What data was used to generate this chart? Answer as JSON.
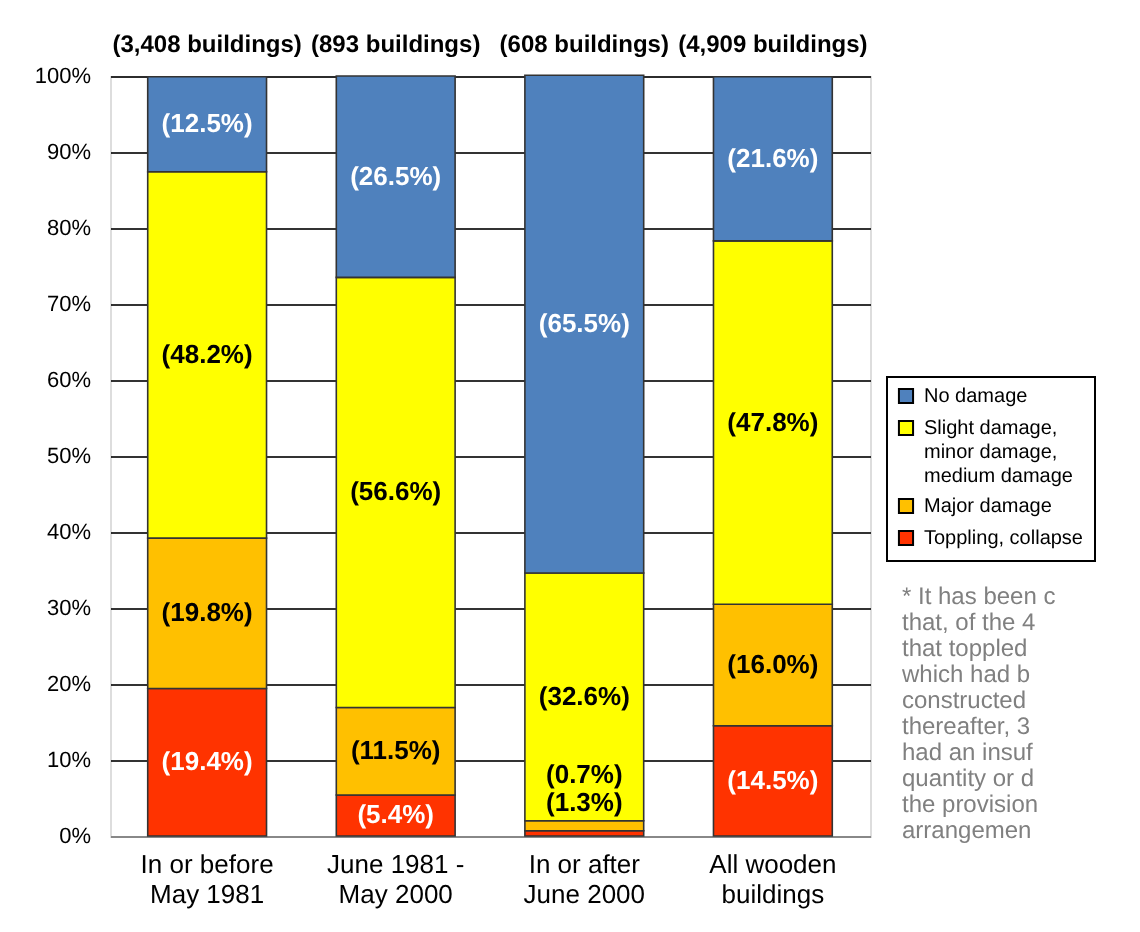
{
  "chart_data": {
    "type": "bar",
    "stacked": true,
    "categories": [
      "In or before\nMay 1981",
      "June 1981 -\nMay 2000",
      "In or after\nJune 2000",
      "All wooden\nbuildings"
    ],
    "series": [
      {
        "name": "Toppling, collapse",
        "color": "#ff3300",
        "values": [
          19.4,
          5.4,
          0.7,
          14.5
        ],
        "value_labels": [
          "(19.4%)",
          "(5.4%)",
          "(0.7%)",
          "(14.5%)"
        ]
      },
      {
        "name": "Major damage",
        "color": "#ffc000",
        "values": [
          19.8,
          11.5,
          1.3,
          16.0
        ],
        "value_labels": [
          "(19.8%)",
          "(11.5%)",
          "(1.3%)",
          "(16.0%)"
        ]
      },
      {
        "name": "Slight damage, minor damage, medium damage",
        "color": "#ffff00",
        "values": [
          48.2,
          56.6,
          32.6,
          47.8
        ],
        "value_labels": [
          "(48.2%)",
          "(56.6%)",
          "(32.6%)",
          "(47.8%)"
        ]
      },
      {
        "name": "No damage",
        "color": "#4f81bd",
        "values": [
          12.5,
          26.5,
          65.5,
          21.6
        ],
        "value_labels": [
          "(12.5%)",
          "(26.5%)",
          "(65.5%)",
          "(21.6%)"
        ]
      }
    ],
    "ylim": [
      0,
      100
    ],
    "yticks": [
      {
        "value": 0,
        "label": "0%"
      },
      {
        "value": 10,
        "label": "10%"
      },
      {
        "value": 20,
        "label": "20%"
      },
      {
        "value": 30,
        "label": "30%"
      },
      {
        "value": 40,
        "label": "40%"
      },
      {
        "value": 50,
        "label": "50%"
      },
      {
        "value": 60,
        "label": "60%"
      },
      {
        "value": 70,
        "label": "70%"
      },
      {
        "value": 80,
        "label": "80%"
      },
      {
        "value": 90,
        "label": "90%"
      },
      {
        "value": 100,
        "label": "100%"
      }
    ],
    "grid": "y",
    "legend": "right",
    "annotations": [
      "(3,408 buildings)",
      "(893 buildings)",
      "(608 buildings)",
      "(4,909 buildings)",
      "*  It has been c\n   that, of the 4\n   that toppled\n   which had b\n   constructed\n   thereafter, 3\n   had an insuf\n   quantity or d\n   the provision\n   arrangemen"
    ]
  }
}
